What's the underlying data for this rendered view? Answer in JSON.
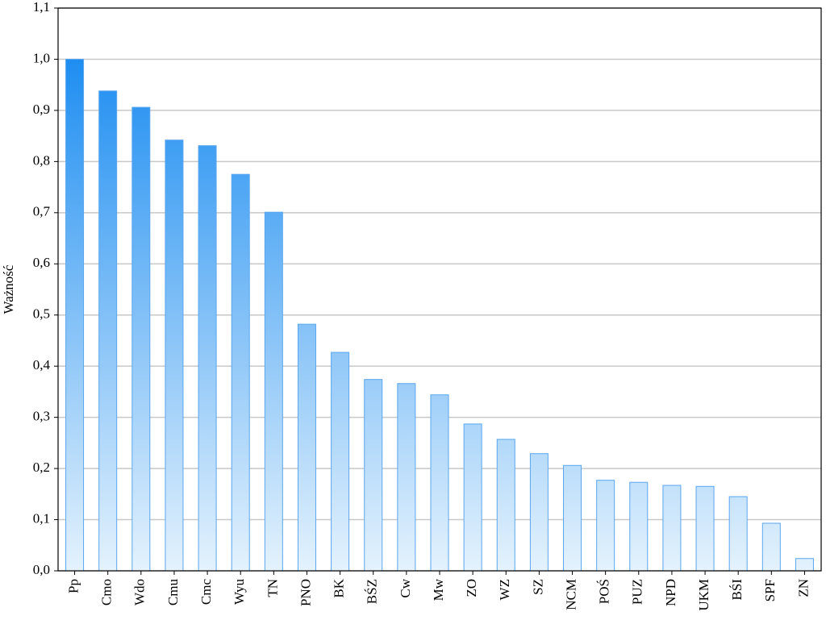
{
  "chart_data": {
    "type": "bar",
    "y_label": "Ważność",
    "categories": [
      "Pp",
      "Cmo",
      "Wdo",
      "Cmu",
      "Cmc",
      "Wyu",
      "TN",
      "PNO",
      "BK",
      "BŚZ",
      "Cw",
      "Mw",
      "ZO",
      "WZ",
      "SZ",
      "NCM",
      "POŚ",
      "PUZ",
      "NPD",
      "UKM",
      "BŚI",
      "SPF",
      "ZN"
    ],
    "values": [
      1.0,
      0.938,
      0.906,
      0.842,
      0.831,
      0.775,
      0.701,
      0.482,
      0.427,
      0.374,
      0.366,
      0.344,
      0.287,
      0.257,
      0.229,
      0.206,
      0.177,
      0.173,
      0.167,
      0.165,
      0.145,
      0.093,
      0.024
    ],
    "color": "#1f8ef1",
    "ylim": [
      0,
      1.1
    ],
    "yticks": [
      {
        "value": 0,
        "label": "0,0"
      },
      {
        "value": 0.1,
        "label": "0,1"
      },
      {
        "value": 0.2,
        "label": "0,2"
      },
      {
        "value": 0.3,
        "label": "0,3"
      },
      {
        "value": 0.4,
        "label": "0,4"
      },
      {
        "value": 0.5,
        "label": "0,5"
      },
      {
        "value": 0.6,
        "label": "0,6"
      },
      {
        "value": 0.7,
        "label": "0,7"
      },
      {
        "value": 0.8,
        "label": "0,8"
      },
      {
        "value": 0.9,
        "label": "0,9"
      },
      {
        "value": 1.0,
        "label": "1,0"
      },
      {
        "value": 1.1,
        "label": "1,1"
      }
    ],
    "grid": true
  }
}
